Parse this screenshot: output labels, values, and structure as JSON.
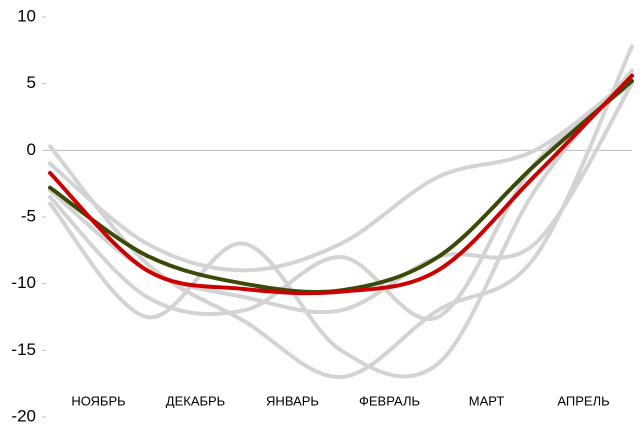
{
  "chart_data": {
    "type": "line",
    "x": [
      "",
      "",
      "",
      "",
      "",
      "",
      ""
    ],
    "x_labels": [
      "НОЯБРЬ",
      "ДЕКАБРЬ",
      "ЯНВАРЬ",
      "ФЕВРАЛЬ",
      "МАРТ",
      "АПРЕЛЬ"
    ],
    "series": [
      {
        "color": "#d3d3d3",
        "values": [
          0.3,
          -8.5,
          -12.8,
          -17,
          -12,
          -8,
          7.8
        ]
      },
      {
        "color": "#d3d3d3",
        "values": [
          -4,
          -12.5,
          -7,
          -15,
          -16,
          -3,
          6
        ]
      },
      {
        "color": "#d3d3d3",
        "values": [
          -3.5,
          -11,
          -12,
          -8,
          -12.5,
          -1,
          5
        ]
      },
      {
        "color": "#d3d3d3",
        "values": [
          -1,
          -7,
          -9,
          -7,
          -2,
          0,
          5.5
        ]
      },
      {
        "color": "#d3d3d3",
        "values": [
          -3,
          -9,
          -11,
          -12,
          -8,
          -7,
          5
        ]
      },
      {
        "color": "#3a4a0a",
        "values": [
          -2.8,
          -7.9,
          -10,
          -10.5,
          -8,
          -1.1,
          5.2
        ]
      },
      {
        "color": "#cc0000",
        "values": [
          -1.7,
          -9,
          -10.4,
          -10.6,
          -9,
          -1.9,
          5.6
        ]
      }
    ],
    "ylim": [
      -20,
      10
    ],
    "yticks": [
      10,
      5,
      0,
      -5,
      -10,
      -15,
      -20
    ]
  }
}
